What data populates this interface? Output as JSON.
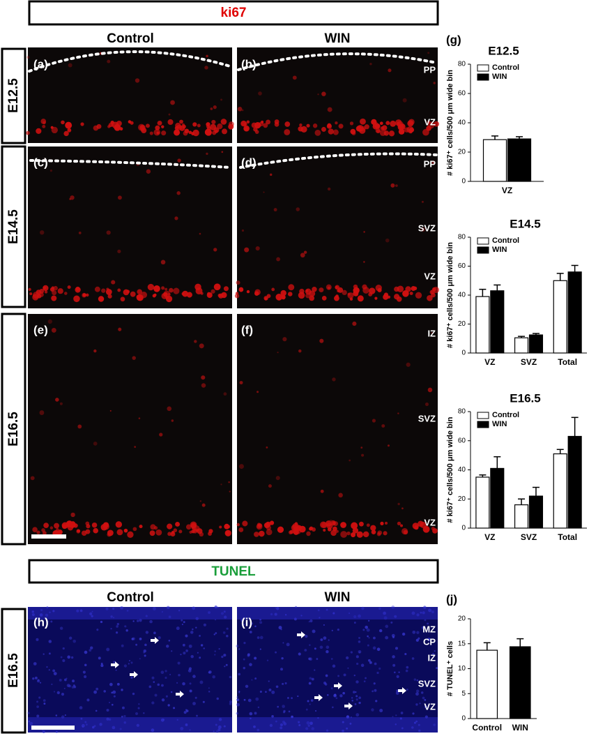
{
  "figure": {
    "ki67_title": "ki67",
    "tunel_title": "TUNEL",
    "ki67_columns": [
      "Control",
      "WIN"
    ],
    "tunel_columns": [
      "Control",
      "WIN"
    ],
    "rows": [
      "E12.5",
      "E14.5",
      "E16.5"
    ],
    "tunel_row": "E16.5",
    "panels": [
      "(a)",
      "(b)",
      "(c)",
      "(d)",
      "(e)",
      "(f)",
      "(h)",
      "(i)"
    ],
    "zones_e12": [
      "PP",
      "VZ"
    ],
    "zones_e14": [
      "PP",
      "SVZ",
      "VZ"
    ],
    "zones_e16": [
      "IZ",
      "SVZ",
      "VZ"
    ],
    "zones_tunel": [
      "MZ",
      "CP",
      "IZ",
      "SVZ",
      "VZ"
    ]
  },
  "chart_data": [
    {
      "type": "bar",
      "panel": "(g)",
      "title": "E12.5",
      "ylabel": "# ki67⁺ cells/500 μm wide bin",
      "categories": [
        "VZ"
      ],
      "series": [
        {
          "name": "Control",
          "color": "#ffffff",
          "values": [
            28.5
          ],
          "errors": [
            2.5
          ]
        },
        {
          "name": "WIN",
          "color": "#000000",
          "values": [
            29
          ],
          "errors": [
            1.5
          ]
        }
      ],
      "ylim": [
        0,
        80
      ],
      "yticks": [
        0,
        20,
        40,
        60,
        80
      ],
      "legend": "top-left"
    },
    {
      "type": "bar",
      "title": "E14.5",
      "ylabel": "# ki67⁺ cells/500 μm wide bin",
      "categories": [
        "VZ",
        "SVZ",
        "Total"
      ],
      "series": [
        {
          "name": "Control",
          "color": "#ffffff",
          "values": [
            39,
            10.5,
            50
          ],
          "errors": [
            5,
            1,
            5
          ]
        },
        {
          "name": "WIN",
          "color": "#000000",
          "values": [
            43,
            12.5,
            56
          ],
          "errors": [
            4,
            1,
            4.5
          ]
        }
      ],
      "ylim": [
        0,
        80
      ],
      "yticks": [
        0,
        20,
        40,
        60,
        80
      ],
      "legend": "top-left"
    },
    {
      "type": "bar",
      "title": "E16.5",
      "ylabel": "# ki67⁺ cells/500 μm wide bin",
      "categories": [
        "VZ",
        "SVZ",
        "Total"
      ],
      "series": [
        {
          "name": "Control",
          "color": "#ffffff",
          "values": [
            35,
            16,
            51
          ],
          "errors": [
            1.5,
            4,
            3
          ]
        },
        {
          "name": "WIN",
          "color": "#000000",
          "values": [
            41,
            22,
            63
          ],
          "errors": [
            8,
            6,
            13
          ]
        }
      ],
      "ylim": [
        0,
        80
      ],
      "yticks": [
        0,
        20,
        40,
        60,
        80
      ],
      "legend": "top-left"
    },
    {
      "type": "bar",
      "panel": "(j)",
      "ylabel": "# TUNEL⁺ cells",
      "categories": [
        "Control",
        "WIN"
      ],
      "values": [
        13.7,
        14.4
      ],
      "errors": [
        1.5,
        1.6
      ],
      "colors": [
        "#ffffff",
        "#000000"
      ],
      "ylim": [
        0,
        20
      ],
      "yticks": [
        0,
        5,
        10,
        15,
        20
      ]
    }
  ]
}
